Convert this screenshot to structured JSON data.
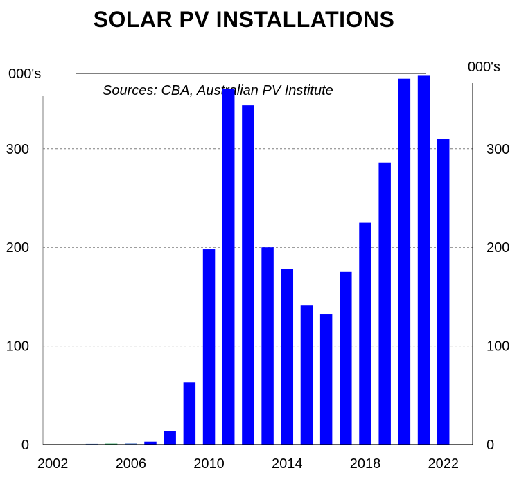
{
  "title": "SOLAR PV INSTALLATIONS",
  "unit_left": "000's",
  "unit_right": "000's",
  "source": "Sources: CBA, Australian PV Institute",
  "colors": {
    "bar": "#0000ff",
    "small_bar": "#6b8fd6",
    "small_bar_alt": "#3aa86b",
    "grid": "#7f7f7f"
  },
  "chart_data": {
    "type": "bar",
    "title": "SOLAR PV INSTALLATIONS",
    "ylabel": "000's",
    "ylim": [
      0,
      375
    ],
    "yticks": [
      0,
      100,
      200,
      300
    ],
    "xlim": [
      2001.5,
      2023.5
    ],
    "xticks": [
      2002,
      2006,
      2010,
      2014,
      2018,
      2022
    ],
    "grid": true,
    "categories": [
      2002,
      2003,
      2004,
      2005,
      2006,
      2007,
      2008,
      2009,
      2010,
      2011,
      2012,
      2013,
      2014,
      2015,
      2016,
      2017,
      2018,
      2019,
      2020,
      2021,
      2022
    ],
    "values": [
      0.2,
      0.3,
      0.8,
      1,
      1.2,
      3,
      14,
      63,
      198,
      361,
      344,
      200,
      178,
      141,
      132,
      175,
      225,
      286,
      371,
      374,
      310
    ]
  }
}
